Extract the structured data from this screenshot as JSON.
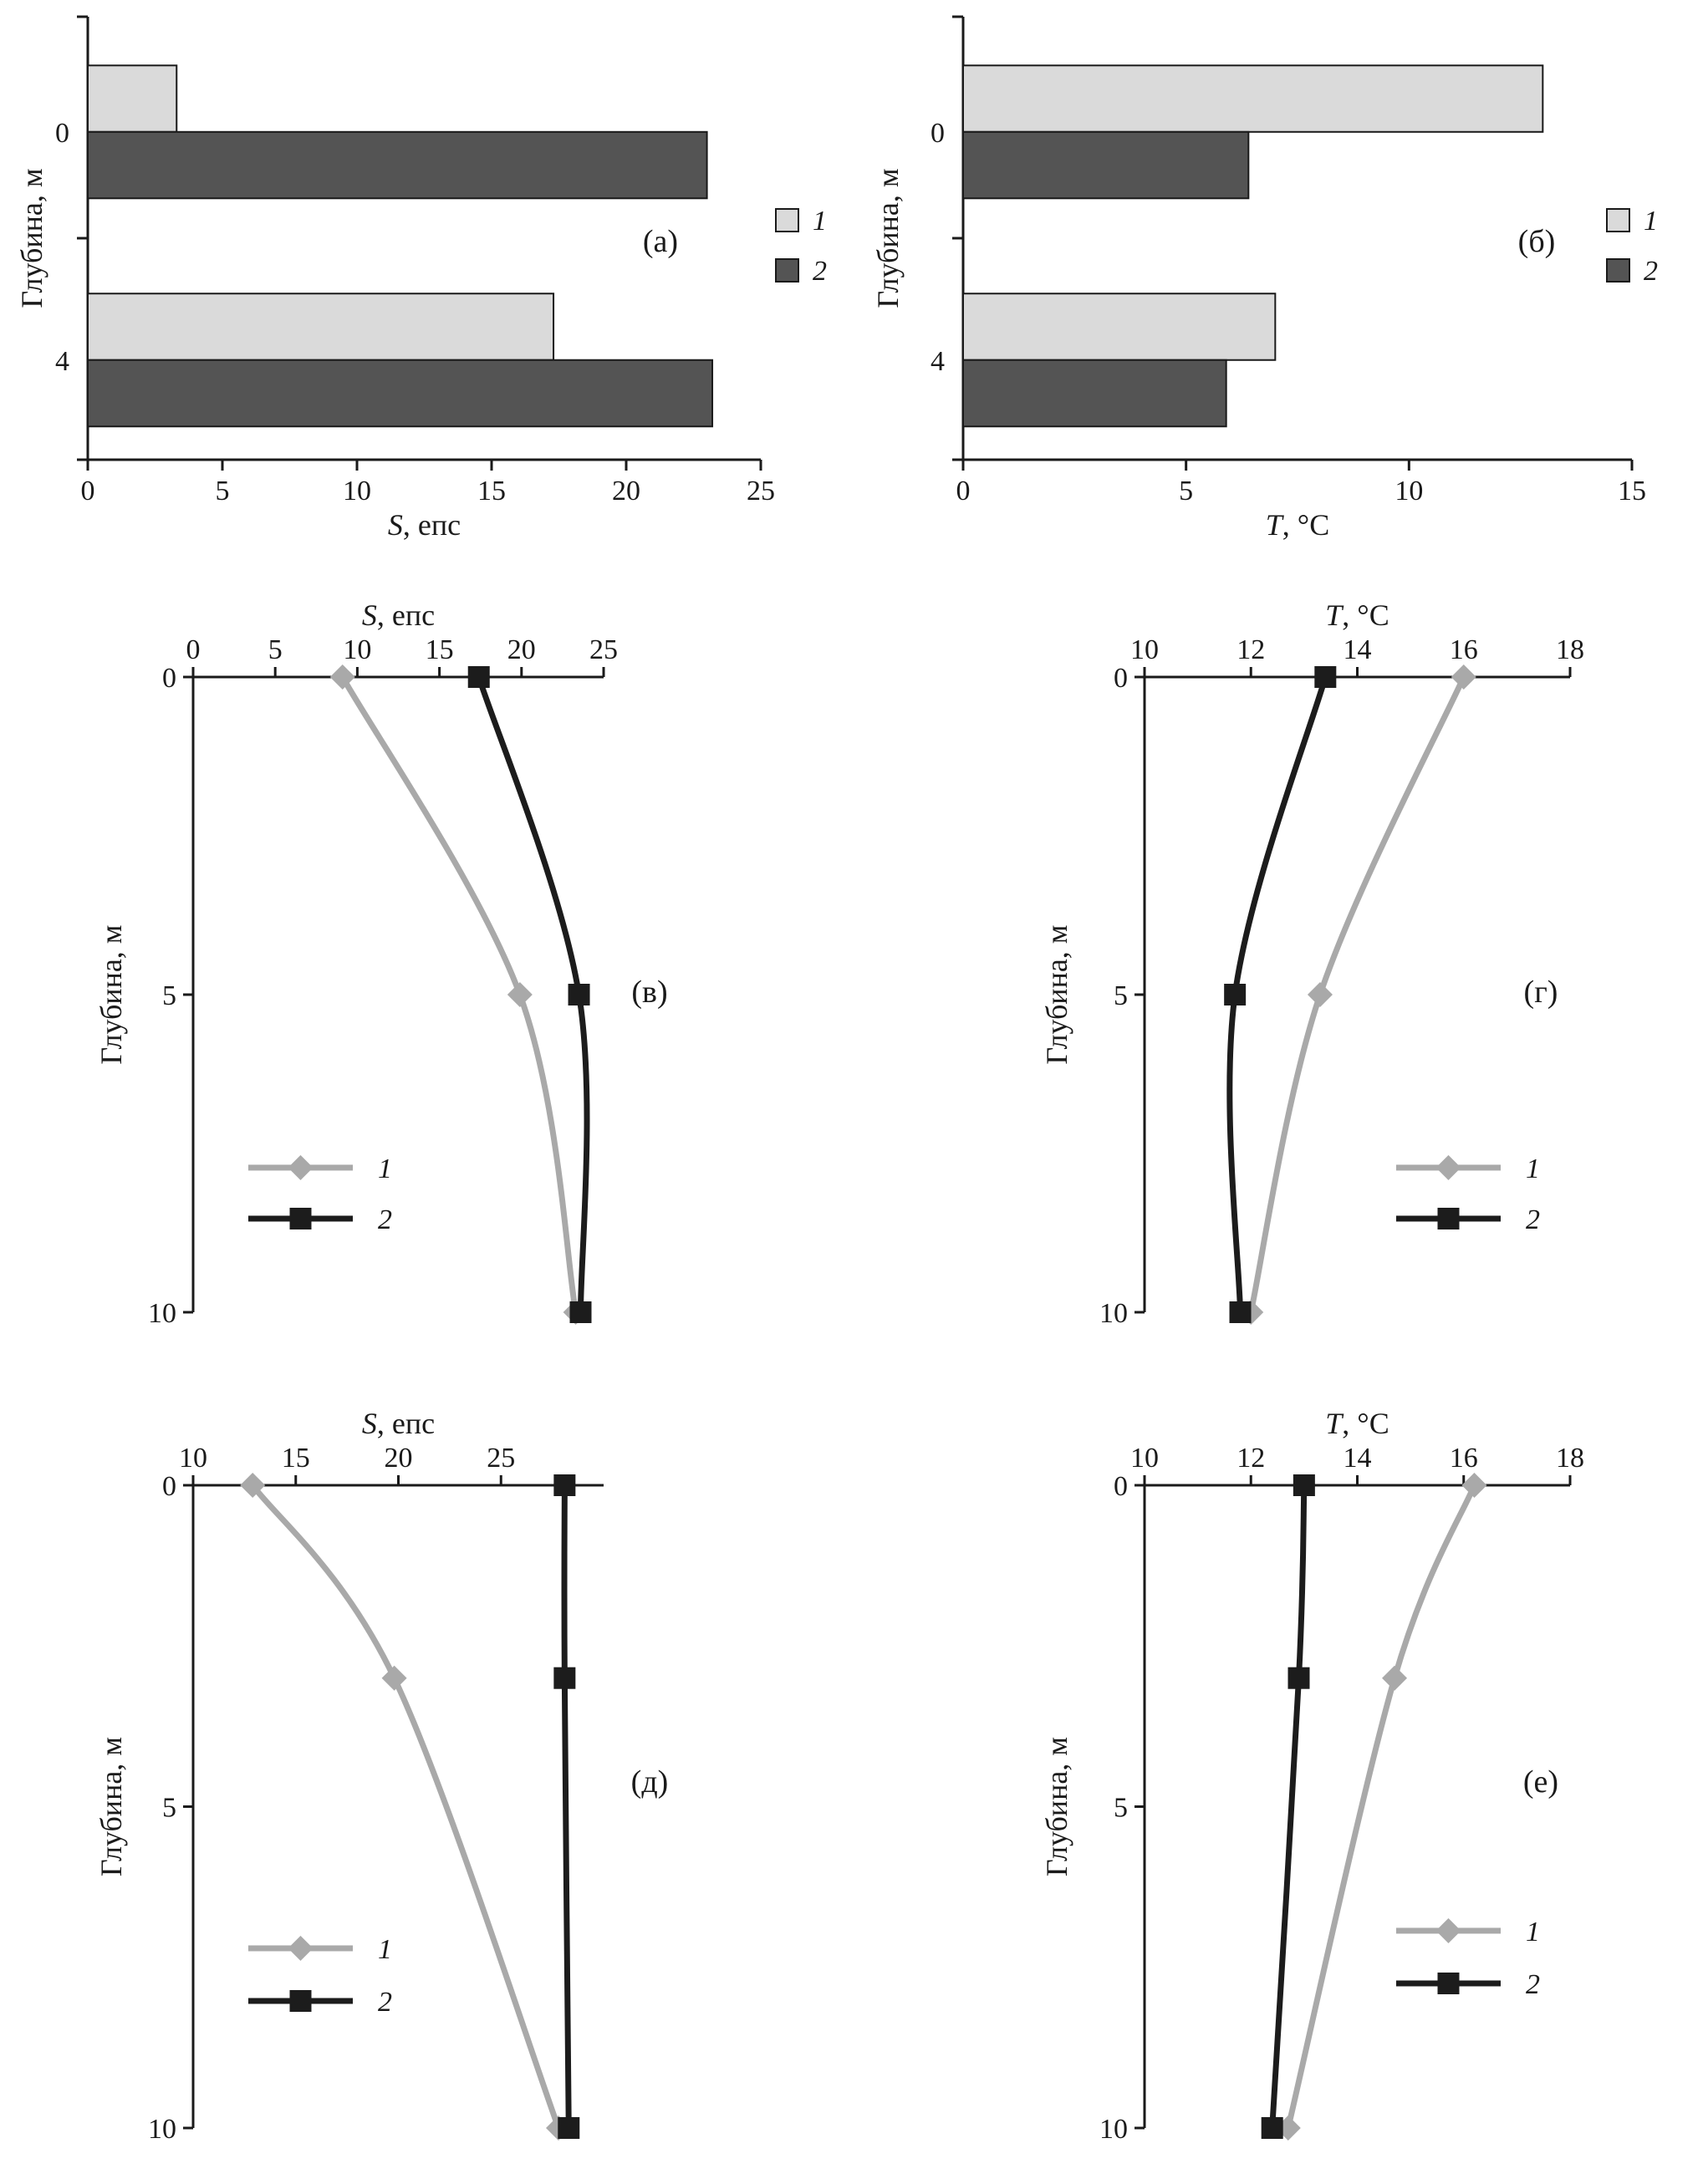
{
  "figure": {
    "background": "#ffffff",
    "colors": {
      "axis": "#1a1a1a",
      "text": "#1a1a1a",
      "series1_bar_fill": "#dadada",
      "series2_bar_fill": "#545454",
      "bar_stroke": "#1a1a1a",
      "series1_line": "#a9a9a9",
      "series2_line": "#1c1c1c"
    }
  },
  "chart_data": [
    {
      "id": "a",
      "type": "bar",
      "panel_label": "(а)",
      "xlabel_parts": [
        [
          "S",
          true
        ],
        [
          ", епс",
          false
        ]
      ],
      "ylabel": "Глубина, м",
      "xlim": [
        0,
        25
      ],
      "xticks": [
        0,
        5,
        10,
        15,
        20,
        25
      ],
      "categories": [
        "0",
        "4"
      ],
      "series": [
        {
          "name": "1",
          "values": [
            3.3,
            17.3
          ]
        },
        {
          "name": "2",
          "values": [
            23.0,
            23.2
          ]
        }
      ],
      "legend": [
        "1",
        "2"
      ],
      "legend_position": "right",
      "grid": false
    },
    {
      "id": "b",
      "type": "bar",
      "panel_label": "(б)",
      "xlabel_parts": [
        [
          "T",
          true
        ],
        [
          ", °C",
          false
        ]
      ],
      "ylabel": "Глубина, м",
      "xlim": [
        0,
        15
      ],
      "xticks": [
        0,
        5,
        10,
        15
      ],
      "categories": [
        "0",
        "4"
      ],
      "series": [
        {
          "name": "1",
          "values": [
            13.0,
            7.0
          ]
        },
        {
          "name": "2",
          "values": [
            6.4,
            5.9
          ]
        }
      ],
      "legend": [
        "1",
        "2"
      ],
      "legend_position": "right",
      "grid": false
    },
    {
      "id": "v",
      "type": "line",
      "panel_label": "(в)",
      "xlabel_parts": [
        [
          "S",
          true
        ],
        [
          ", епс",
          false
        ]
      ],
      "ylabel": "Глубина, м",
      "xlim": [
        0,
        25
      ],
      "xticks": [
        0,
        5,
        10,
        15,
        20,
        25
      ],
      "ylim": [
        0,
        10
      ],
      "yticks": [
        0,
        5,
        10
      ],
      "series": [
        {
          "name": "1",
          "marker": "diamond",
          "points": [
            [
              9.1,
              0
            ],
            [
              19.9,
              5
            ],
            [
              23.3,
              10
            ]
          ]
        },
        {
          "name": "2",
          "marker": "square",
          "points": [
            [
              17.4,
              0
            ],
            [
              23.5,
              5
            ],
            [
              23.6,
              10
            ]
          ]
        }
      ],
      "legend": [
        "1",
        "2"
      ],
      "legend_position": "lower-left-inside",
      "grid": false
    },
    {
      "id": "g",
      "type": "line",
      "panel_label": "(г)",
      "xlabel_parts": [
        [
          "T",
          true
        ],
        [
          ", °C",
          false
        ]
      ],
      "ylabel": "Глубина, м",
      "xlim": [
        10,
        18
      ],
      "xticks": [
        10,
        12,
        14,
        16,
        18
      ],
      "ylim": [
        0,
        10
      ],
      "yticks": [
        0,
        5,
        10
      ],
      "series": [
        {
          "name": "1",
          "marker": "diamond",
          "points": [
            [
              16.0,
              0
            ],
            [
              13.3,
              5
            ],
            [
              12.0,
              10
            ]
          ]
        },
        {
          "name": "2",
          "marker": "square",
          "points": [
            [
              13.4,
              0
            ],
            [
              11.7,
              5
            ],
            [
              11.8,
              10
            ]
          ]
        }
      ],
      "legend": [
        "1",
        "2"
      ],
      "legend_position": "lower-left-inside",
      "grid": false
    },
    {
      "id": "d",
      "type": "line",
      "panel_label": "(д)",
      "xlabel_parts": [
        [
          "S",
          true
        ],
        [
          ", епс",
          false
        ]
      ],
      "ylabel": "Глубина, м",
      "xlim": [
        10,
        30
      ],
      "xticks": [
        10,
        15,
        20,
        25
      ],
      "ylim": [
        0,
        10
      ],
      "yticks": [
        0,
        5,
        10
      ],
      "series": [
        {
          "name": "1",
          "marker": "diamond",
          "points": [
            [
              12.9,
              0
            ],
            [
              19.8,
              3
            ],
            [
              27.8,
              10
            ]
          ]
        },
        {
          "name": "2",
          "marker": "square",
          "points": [
            [
              28.1,
              0
            ],
            [
              28.1,
              3
            ],
            [
              28.3,
              10
            ]
          ]
        }
      ],
      "legend": [
        "1",
        "2"
      ],
      "legend_position": "lower-left-inside",
      "grid": false
    },
    {
      "id": "e",
      "type": "line",
      "panel_label": "(е)",
      "xlabel_parts": [
        [
          "T",
          true
        ],
        [
          ", °C",
          false
        ]
      ],
      "ylabel": "Глубина, м",
      "xlim": [
        10,
        18
      ],
      "xticks": [
        10,
        12,
        14,
        16,
        18
      ],
      "ylim": [
        0,
        10
      ],
      "yticks": [
        0,
        5,
        10
      ],
      "series": [
        {
          "name": "1",
          "marker": "diamond",
          "points": [
            [
              16.2,
              0
            ],
            [
              14.7,
              3
            ],
            [
              12.7,
              10
            ]
          ]
        },
        {
          "name": "2",
          "marker": "square",
          "points": [
            [
              13.0,
              0
            ],
            [
              12.9,
              3
            ],
            [
              12.4,
              10
            ]
          ]
        }
      ],
      "legend": [
        "1",
        "2"
      ],
      "legend_position": "lower-left-inside",
      "grid": false
    }
  ]
}
